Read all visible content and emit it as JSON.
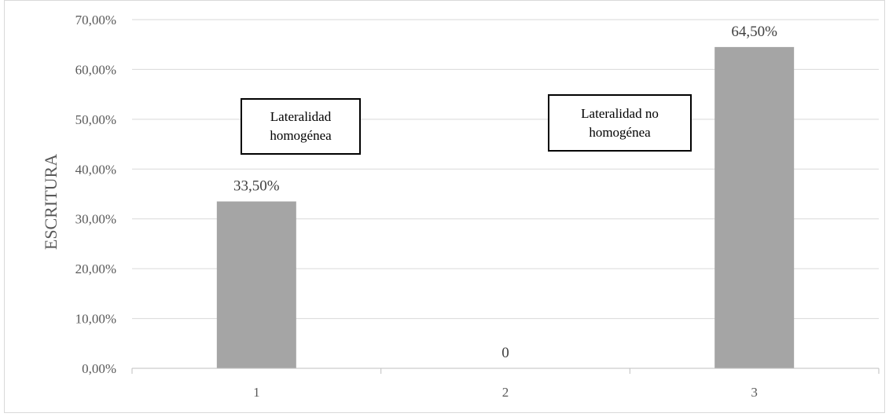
{
  "chart_data": {
    "type": "bar",
    "categories": [
      "1",
      "2",
      "3"
    ],
    "values": [
      33.5,
      0,
      64.5
    ],
    "data_labels": [
      "33,50%",
      "0",
      "64,50%"
    ],
    "title": "",
    "xlabel": "",
    "ylabel": "ESCRITURA",
    "ylim": [
      0,
      70
    ],
    "y_ticks": [
      "0,00%",
      "10,00%",
      "20,00%",
      "30,00%",
      "40,00%",
      "50,00%",
      "60,00%",
      "70,00%"
    ],
    "grid": true,
    "bar_color": "#a5a5a5",
    "annotations": [
      "Lateralidad homogénea",
      "Lateralidad no homogénea"
    ]
  }
}
